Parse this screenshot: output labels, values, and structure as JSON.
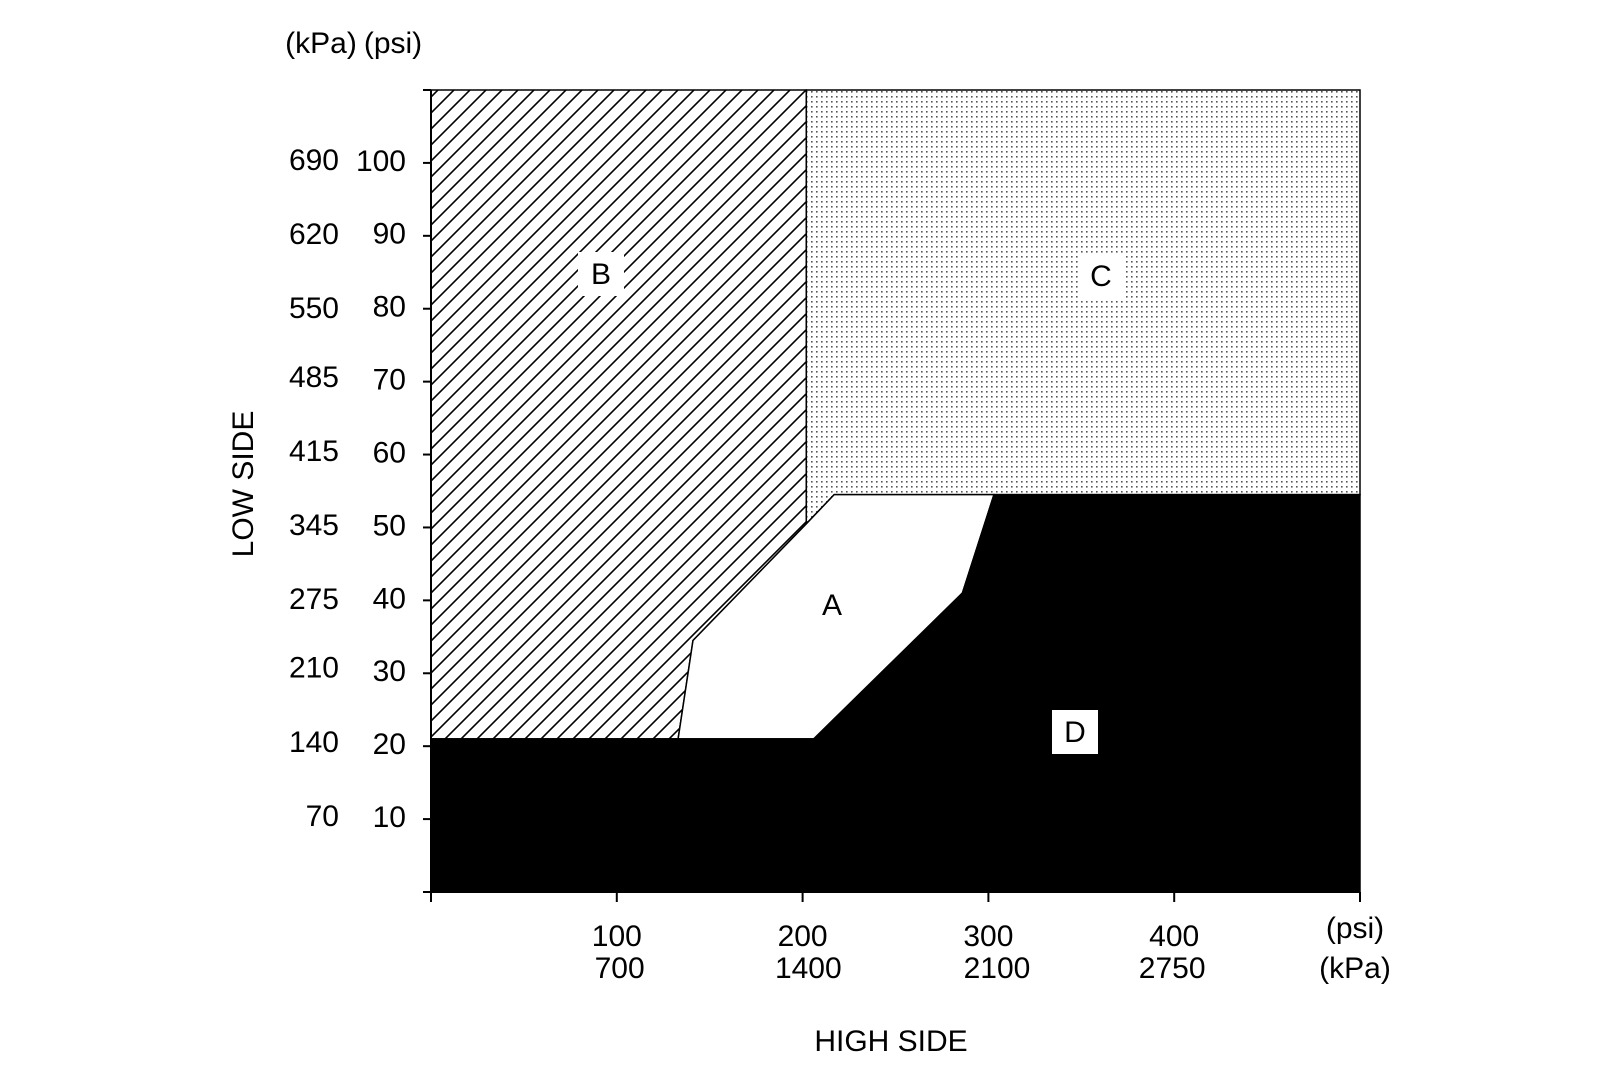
{
  "chart_data": {
    "type": "region",
    "x_label": "HIGH SIDE",
    "y_label": "LOW SIDE",
    "x_units": "(psi)",
    "x2_units": "(kPa)",
    "y_units": "(psi)",
    "y2_units": "(kPa)",
    "xlim": [
      0,
      500
    ],
    "xticks": [
      100,
      200,
      300,
      400
    ],
    "x2lim": [
      0,
      3447
    ],
    "x2ticks": [
      700,
      1400,
      2100,
      2750
    ],
    "ylim": [
      0,
      110
    ],
    "yticks": [
      10,
      20,
      30,
      40,
      50,
      60,
      70,
      80,
      90,
      100
    ],
    "y2lim": [
      0,
      758
    ],
    "y2ticks": [
      70,
      140,
      210,
      275,
      345,
      415,
      485,
      550,
      620,
      690
    ],
    "regions": [
      {
        "name": "B",
        "fill": "hatch",
        "points": [
          [
            0,
            110
          ],
          [
            202,
            110
          ],
          [
            202,
            50.5
          ],
          [
            141,
            34.5
          ],
          [
            133,
            21
          ],
          [
            0,
            21
          ]
        ]
      },
      {
        "name": "C",
        "fill": "dots",
        "points": [
          [
            202,
            110
          ],
          [
            500,
            110
          ],
          [
            500,
            54.5
          ],
          [
            217,
            54.5
          ],
          [
            202,
            50.5
          ]
        ]
      },
      {
        "name": "A",
        "fill": "white",
        "points": [
          [
            133,
            21
          ],
          [
            141,
            34.5
          ],
          [
            202,
            50.5
          ],
          [
            217,
            54.5
          ],
          [
            303,
            54.5
          ],
          [
            286,
            41
          ],
          [
            206,
            21
          ]
        ]
      },
      {
        "name": "D",
        "fill": "black",
        "points": [
          [
            0,
            21
          ],
          [
            206,
            21
          ],
          [
            286,
            41
          ],
          [
            303,
            54.5
          ],
          [
            500,
            54.5
          ],
          [
            500,
            0
          ],
          [
            0,
            0
          ]
        ]
      }
    ]
  }
}
